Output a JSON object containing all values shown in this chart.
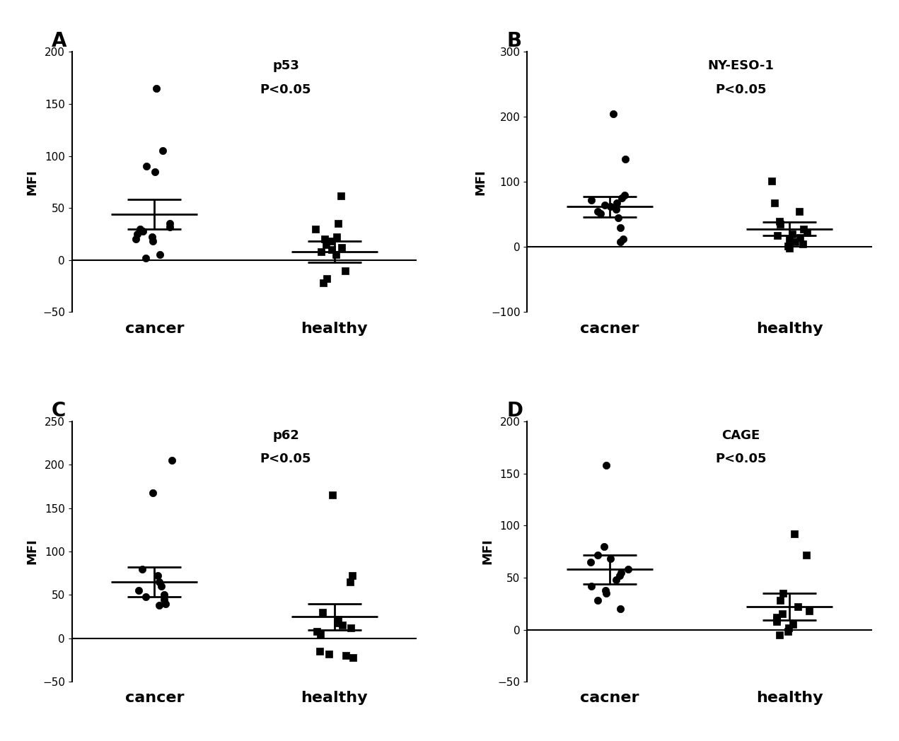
{
  "panels": [
    {
      "label": "A",
      "title": "p53",
      "pvalue": "P<0.05",
      "xlabel_cancer": "cancer",
      "xlabel_healthy": "healthy",
      "ylim": [
        -50,
        200
      ],
      "yticks": [
        -50,
        0,
        50,
        100,
        150,
        200
      ],
      "cancer_dots": [
        165,
        105,
        90,
        85,
        35,
        32,
        30,
        28,
        25,
        22,
        20,
        18,
        5,
        2
      ],
      "cancer_mean": 44,
      "cancer_sem_upper": 58,
      "cancer_sem_lower": 30,
      "healthy_dots": [
        62,
        35,
        30,
        22,
        20,
        18,
        15,
        12,
        10,
        8,
        5,
        -10,
        -18,
        -22
      ],
      "healthy_mean": 8,
      "healthy_sem_upper": 18,
      "healthy_sem_lower": -2,
      "cancer_marker": "o",
      "healthy_marker": "s"
    },
    {
      "label": "B",
      "title": "NY-ESO-1",
      "pvalue": "P<0.05",
      "xlabel_cancer": "cacner",
      "xlabel_healthy": "healthy",
      "ylim": [
        -100,
        300
      ],
      "yticks": [
        -100,
        0,
        100,
        200,
        300
      ],
      "cancer_dots": [
        205,
        135,
        80,
        75,
        72,
        68,
        65,
        62,
        58,
        55,
        52,
        45,
        30,
        12,
        8
      ],
      "cancer_mean": 62,
      "cancer_sem_upper": 78,
      "cancer_sem_lower": 46,
      "healthy_dots": [
        102,
        68,
        55,
        40,
        35,
        28,
        22,
        20,
        18,
        15,
        12,
        8,
        5,
        2,
        -2
      ],
      "healthy_mean": 28,
      "healthy_sem_upper": 38,
      "healthy_sem_lower": 18,
      "cancer_marker": "o",
      "healthy_marker": "s"
    },
    {
      "label": "C",
      "title": "p62",
      "pvalue": "P<0.05",
      "xlabel_cancer": "cancer",
      "xlabel_healthy": "healthy",
      "ylim": [
        -50,
        250
      ],
      "yticks": [
        -50,
        0,
        50,
        100,
        150,
        200,
        250
      ],
      "cancer_dots": [
        205,
        168,
        80,
        72,
        65,
        60,
        55,
        50,
        48,
        45,
        40,
        38
      ],
      "cancer_mean": 65,
      "cancer_sem_upper": 82,
      "cancer_sem_lower": 48,
      "healthy_dots": [
        165,
        72,
        65,
        30,
        22,
        18,
        15,
        12,
        8,
        5,
        -15,
        -18,
        -20,
        -22
      ],
      "healthy_mean": 25,
      "healthy_sem_upper": 40,
      "healthy_sem_lower": 10,
      "cancer_marker": "o",
      "healthy_marker": "s"
    },
    {
      "label": "D",
      "title": "CAGE",
      "pvalue": "P<0.05",
      "xlabel_cancer": "cacner",
      "xlabel_healthy": "healthy",
      "ylim": [
        -50,
        200
      ],
      "yticks": [
        -50,
        0,
        50,
        100,
        150,
        200
      ],
      "cancer_dots": [
        158,
        80,
        72,
        68,
        65,
        58,
        55,
        52,
        48,
        42,
        38,
        35,
        28,
        20
      ],
      "cancer_mean": 58,
      "cancer_sem_upper": 72,
      "cancer_sem_lower": 44,
      "healthy_dots": [
        92,
        72,
        35,
        28,
        22,
        18,
        15,
        12,
        10,
        8,
        5,
        2,
        -2,
        -5
      ],
      "healthy_mean": 22,
      "healthy_sem_upper": 35,
      "healthy_sem_lower": 9,
      "cancer_marker": "o",
      "healthy_marker": "s"
    }
  ],
  "background_color": "#ffffff",
  "dot_color": "#000000",
  "line_color": "#000000",
  "title_fontsize": 13,
  "label_fontsize": 20,
  "tick_fontsize": 11,
  "xlabel_fontsize": 16,
  "ylabel_fontsize": 13
}
